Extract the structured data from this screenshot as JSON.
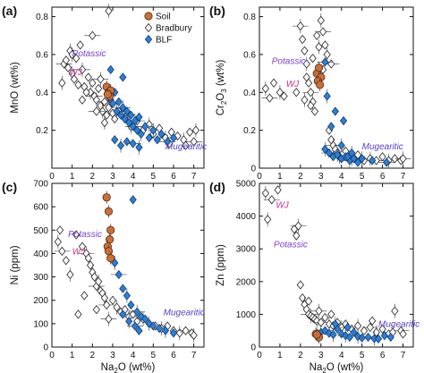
{
  "figure": {
    "legend": [
      {
        "name": "Soil",
        "marker": "circle",
        "color": "#c8703a"
      },
      {
        "name": "Bradbury",
        "marker": "diamond-open",
        "color": "#ffffff"
      },
      {
        "name": "BLF",
        "marker": "diamond",
        "color": "#2f7fd1"
      }
    ],
    "colors": {
      "soil": "#c8703a",
      "bradbury": "#ffffff",
      "blf": "#2f7fd1",
      "potassic": "#7b3fd0",
      "wj": "#d0308f",
      "mugearitic": "#5a3fc8"
    }
  },
  "chart_data": [
    {
      "panel": "(a)",
      "type": "scatter",
      "ylabel": "MnO (wt%)",
      "xlabel": "",
      "xlim": [
        0,
        7.5
      ],
      "ylim": [
        0,
        0.85
      ],
      "xticks": [
        0,
        1,
        2,
        3,
        4,
        5,
        6,
        7
      ],
      "xtick_labels": [
        "0",
        "1",
        "2",
        "3",
        "4",
        "5",
        "6",
        "7"
      ],
      "yticks": [
        0.2,
        0.4,
        0.6,
        0.8
      ],
      "ytick_labels": [
        "0.2",
        "0.4",
        "0.6",
        "0.8"
      ],
      "annotations": [
        {
          "text": "Potassic",
          "x": 1.0,
          "y": 0.59,
          "color": "#7b3fd0"
        },
        {
          "text": "WJ",
          "x": 0.85,
          "y": 0.49,
          "color": "#d0308f"
        },
        {
          "text": "Mugearitic",
          "x": 5.6,
          "y": 0.1,
          "color": "#5a3fc8"
        }
      ],
      "series": [
        {
          "name": "Soil",
          "x": [
            2.7,
            2.8,
            2.9,
            2.85,
            2.75
          ],
          "y": [
            0.43,
            0.4,
            0.41,
            0.38,
            0.39
          ]
        },
        {
          "name": "Bradbury",
          "x": [
            0.5,
            0.6,
            0.8,
            1.0,
            1.1,
            1.3,
            1.5,
            1.6,
            1.8,
            1.9,
            2.0,
            2.1,
            2.2,
            2.3,
            2.4,
            2.5,
            2.6,
            2.7,
            2.8,
            3.0,
            3.1,
            2.4,
            1.7,
            1.2,
            0.9,
            1.5,
            2.2,
            2.6,
            3.3,
            3.6,
            3.9,
            4.2,
            4.5,
            4.8,
            5.0,
            5.3,
            5.6,
            5.9,
            6.2,
            6.5,
            6.8,
            7.0,
            7.1,
            6.6,
            5.8,
            2.8,
            2.0,
            1.4,
            1.0,
            0.7
          ],
          "y": [
            0.45,
            0.55,
            0.53,
            0.5,
            0.47,
            0.44,
            0.52,
            0.43,
            0.48,
            0.4,
            0.45,
            0.38,
            0.36,
            0.42,
            0.33,
            0.3,
            0.35,
            0.28,
            0.32,
            0.29,
            0.26,
            0.47,
            0.4,
            0.58,
            0.62,
            0.36,
            0.3,
            0.24,
            0.3,
            0.27,
            0.22,
            0.25,
            0.2,
            0.23,
            0.18,
            0.21,
            0.16,
            0.19,
            0.17,
            0.15,
            0.19,
            0.14,
            0.2,
            0.12,
            0.13,
            0.83,
            0.7,
            0.65,
            0.6,
            0.57
          ]
        },
        {
          "name": "BLF",
          "x": [
            2.9,
            3.0,
            3.1,
            3.2,
            3.3,
            3.4,
            3.5,
            3.6,
            3.7,
            3.8,
            3.9,
            4.0,
            4.1,
            4.2,
            4.3,
            4.4,
            4.6,
            4.8,
            5.0,
            5.2,
            5.4,
            5.7,
            6.0,
            3.1,
            3.4,
            3.7,
            4.0,
            4.3,
            2.9,
            3.5
          ],
          "y": [
            0.36,
            0.34,
            0.4,
            0.3,
            0.35,
            0.28,
            0.32,
            0.26,
            0.3,
            0.24,
            0.28,
            0.22,
            0.25,
            0.2,
            0.27,
            0.18,
            0.22,
            0.16,
            0.2,
            0.15,
            0.18,
            0.14,
            0.16,
            0.15,
            0.12,
            0.14,
            0.13,
            0.11,
            0.52,
            0.48
          ]
        }
      ]
    },
    {
      "panel": "(b)",
      "type": "scatter",
      "ylabel": "Cr2O3 (wt%)",
      "xlabel": "",
      "xlim": [
        0,
        7.5
      ],
      "ylim": [
        0,
        0.85
      ],
      "xticks": [
        0,
        1,
        2,
        3,
        4,
        5,
        6,
        7
      ],
      "xtick_labels": [
        "0",
        "1",
        "2",
        "3",
        "4",
        "5",
        "6",
        "7"
      ],
      "yticks": [
        0,
        0.2,
        0.4,
        0.6,
        0.8
      ],
      "ytick_labels": [
        "0",
        "0.2",
        "0.4",
        "0.6",
        "0.8"
      ],
      "annotations": [
        {
          "text": "Potassic",
          "x": 0.6,
          "y": 0.55,
          "color": "#7b3fd0"
        },
        {
          "text": "WJ",
          "x": 1.3,
          "y": 0.43,
          "color": "#d0308f"
        },
        {
          "text": "Mugearitic",
          "x": 5.0,
          "y": 0.1,
          "color": "#5a3fc8"
        }
      ],
      "series": [
        {
          "name": "Soil",
          "x": [
            2.8,
            2.9,
            3.0,
            2.85,
            2.95
          ],
          "y": [
            0.5,
            0.53,
            0.48,
            0.46,
            0.44
          ]
        },
        {
          "name": "Bradbury",
          "x": [
            0.3,
            0.5,
            0.7,
            1.0,
            1.2,
            1.8,
            2.0,
            2.1,
            2.2,
            2.3,
            2.4,
            2.5,
            2.6,
            2.7,
            2.8,
            3.0,
            3.1,
            3.2,
            3.3,
            3.4,
            3.5,
            3.6,
            3.7,
            3.8,
            3.9,
            4.0,
            4.2,
            4.5,
            4.8,
            5.1,
            5.4,
            5.7,
            6.0,
            6.3,
            6.6,
            6.9,
            7.0,
            2.3,
            2.6,
            2.9,
            3.1,
            3.5,
            2.2,
            2.5
          ],
          "y": [
            0.42,
            0.37,
            0.45,
            0.4,
            0.38,
            0.4,
            0.75,
            0.68,
            0.62,
            0.55,
            0.45,
            0.4,
            0.35,
            0.3,
            0.7,
            0.78,
            0.72,
            0.65,
            0.6,
            0.2,
            0.15,
            0.12,
            0.1,
            0.08,
            0.06,
            0.05,
            0.09,
            0.05,
            0.07,
            0.04,
            0.05,
            0.04,
            0.06,
            0.04,
            0.05,
            0.04,
            0.05,
            0.48,
            0.58,
            0.64,
            0.52,
            0.55,
            0.36,
            0.33
          ]
        },
        {
          "name": "BLF",
          "x": [
            3.2,
            3.4,
            3.6,
            3.8,
            4.0,
            4.2,
            4.4,
            4.6,
            4.8,
            5.0,
            5.5,
            6.2,
            3.3,
            3.7,
            4.1,
            4.5,
            3.2,
            3.5,
            4.0,
            4.3
          ],
          "y": [
            0.1,
            0.08,
            0.06,
            0.07,
            0.05,
            0.06,
            0.04,
            0.05,
            0.03,
            0.05,
            0.04,
            0.03,
            0.38,
            0.3,
            0.25,
            0.08,
            0.56,
            0.22,
            0.12,
            0.06
          ]
        }
      ]
    },
    {
      "panel": "(c)",
      "type": "scatter",
      "ylabel": "Ni (ppm)",
      "xlabel": "Na2O (wt%)",
      "xlim": [
        0,
        7.5
      ],
      "ylim": [
        0,
        700
      ],
      "xticks": [
        0,
        1,
        2,
        3,
        4,
        5,
        6,
        7
      ],
      "xtick_labels": [
        "0",
        "1",
        "2",
        "3",
        "4",
        "5",
        "6",
        "7"
      ],
      "yticks": [
        0,
        100,
        200,
        300,
        400,
        500,
        600,
        700
      ],
      "ytick_labels": [
        "0",
        "100",
        "200",
        "300",
        "400",
        "500",
        "600",
        "700"
      ],
      "annotations": [
        {
          "text": "Potassic",
          "x": 0.8,
          "y": 470,
          "color": "#7b3fd0"
        },
        {
          "text": "WJ",
          "x": 1.0,
          "y": 395,
          "color": "#d0308f"
        },
        {
          "text": "Mugearitic",
          "x": 5.5,
          "y": 135,
          "color": "#5a3fc8"
        }
      ],
      "series": [
        {
          "name": "Soil",
          "x": [
            2.7,
            2.8,
            2.9,
            2.85,
            2.75,
            2.8,
            2.9
          ],
          "y": [
            640,
            580,
            500,
            460,
            430,
            410,
            380
          ]
        },
        {
          "name": "Bradbury",
          "x": [
            0.3,
            0.5,
            0.7,
            0.9,
            1.2,
            1.5,
            1.7,
            1.8,
            1.9,
            2.0,
            2.1,
            2.2,
            2.3,
            2.4,
            2.5,
            2.6,
            2.7,
            3.0,
            3.2,
            3.4,
            3.6,
            3.8,
            4.0,
            4.2,
            4.5,
            4.8,
            5.1,
            5.4,
            5.7,
            6.0,
            6.3,
            6.6,
            6.9,
            7.0,
            1.6,
            2.2,
            2.8,
            1.3,
            0.4
          ],
          "y": [
            450,
            410,
            370,
            310,
            480,
            430,
            400,
            380,
            350,
            320,
            300,
            260,
            280,
            240,
            230,
            210,
            180,
            200,
            170,
            150,
            160,
            130,
            140,
            110,
            120,
            100,
            90,
            80,
            90,
            70,
            60,
            70,
            60,
            50,
            220,
            160,
            120,
            140,
            500
          ]
        },
        {
          "name": "BLF",
          "x": [
            3.1,
            3.3,
            3.5,
            3.7,
            3.9,
            4.0,
            4.2,
            4.4,
            4.6,
            4.8,
            5.0,
            5.3,
            5.6,
            6.0,
            3.5,
            3.8,
            4.1,
            4.3
          ],
          "y": [
            360,
            310,
            250,
            220,
            180,
            630,
            150,
            130,
            120,
            100,
            90,
            80,
            70,
            60,
            140,
            110,
            90,
            70
          ]
        }
      ]
    },
    {
      "panel": "(d)",
      "type": "scatter",
      "ylabel": "Zn (ppm)",
      "xlabel": "Na2O (wt%)",
      "xlim": [
        0,
        7.5
      ],
      "ylim": [
        0,
        5000
      ],
      "xticks": [
        0,
        1,
        2,
        3,
        4,
        5,
        6,
        7
      ],
      "xtick_labels": [
        "0",
        "1",
        "2",
        "3",
        "4",
        "5",
        "6",
        "7"
      ],
      "yticks": [
        0,
        1000,
        2000,
        3000,
        4000,
        5000
      ],
      "ytick_labels": [
        "0",
        "1000",
        "2000",
        "3000",
        "4000",
        "5000"
      ],
      "annotations": [
        {
          "text": "WJ",
          "x": 0.8,
          "y": 4250,
          "color": "#d0308f"
        },
        {
          "text": "Potassic",
          "x": 0.7,
          "y": 3050,
          "color": "#7b3fd0"
        },
        {
          "text": "Mugearitic",
          "x": 5.8,
          "y": 620,
          "color": "#5a3fc8"
        }
      ],
      "series": [
        {
          "name": "Soil",
          "x": [
            2.75,
            2.85,
            2.9,
            2.8
          ],
          "y": [
            400,
            350,
            300,
            380
          ]
        },
        {
          "name": "Bradbury",
          "x": [
            0.3,
            0.6,
            0.9,
            0.4,
            1.7,
            1.8,
            1.9,
            2.0,
            2.1,
            2.2,
            2.3,
            2.4,
            2.5,
            2.6,
            2.7,
            2.8,
            3.0,
            3.2,
            3.4,
            3.6,
            3.8,
            4.0,
            4.2,
            4.5,
            4.8,
            5.1,
            5.4,
            5.7,
            6.0,
            6.3,
            6.6,
            6.9,
            7.0,
            6.5,
            5.5,
            2.4,
            2.9,
            3.5
          ],
          "y": [
            4700,
            4500,
            4800,
            3900,
            3600,
            3400,
            3700,
            1900,
            1500,
            1300,
            1150,
            1000,
            950,
            900,
            850,
            800,
            750,
            900,
            700,
            650,
            750,
            600,
            700,
            550,
            650,
            500,
            600,
            450,
            550,
            400,
            1100,
            500,
            400,
            450,
            800,
            1400,
            1100,
            1000
          ]
        },
        {
          "name": "BLF",
          "x": [
            3.0,
            3.2,
            3.4,
            3.6,
            3.8,
            4.0,
            4.2,
            4.4,
            4.6,
            4.8,
            5.0,
            5.3,
            5.6,
            6.1,
            6.4,
            3.7,
            4.3,
            5.8
          ],
          "y": [
            450,
            500,
            420,
            380,
            550,
            400,
            350,
            300,
            450,
            320,
            280,
            300,
            260,
            350,
            300,
            700,
            600,
            250
          ]
        }
      ]
    }
  ]
}
